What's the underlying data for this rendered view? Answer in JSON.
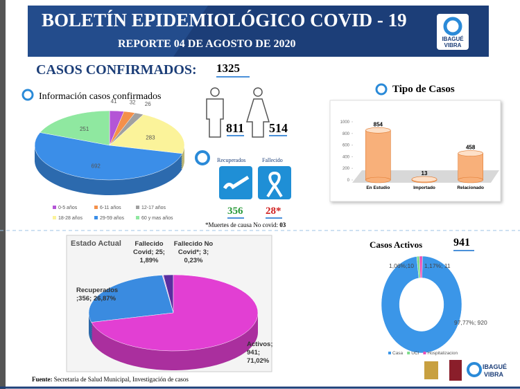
{
  "header": {
    "title": "BOLETÍN EPIDEMIOLÓGICO COVID - 19",
    "subtitle": "REPORTE 04 DE AGOSTO DE 2020",
    "logo_top": "IBAGUÉ",
    "logo_bottom": "VIBRA"
  },
  "confirmed": {
    "label": "CASOS CONFIRMADOS:",
    "total": 1325
  },
  "gender": {
    "male": 811,
    "female": 514
  },
  "status": {
    "recovered_label": "Recuperados",
    "deceased_label": "Fallecido",
    "recovered": 356,
    "deceased": 28,
    "deceased_label_value": "28*",
    "note": "*Muertes de causa No covid:",
    "note_value": "03"
  },
  "source": {
    "label": "Fuente:",
    "text": "Secretaria de Salud Municipal, Investigación de casos"
  },
  "chart_data": [
    {
      "type": "pie",
      "title": "Información casos confirmados",
      "categories": [
        "0-5 años",
        "6-11 años",
        "12-17 años",
        "18-28 años",
        "29-59 años",
        "60 y mas años"
      ],
      "values": [
        41,
        32,
        26,
        283,
        692,
        251
      ],
      "colors": [
        "#b455d6",
        "#f4904a",
        "#a0a0a0",
        "#fbf39a",
        "#3b8ee8",
        "#8fe8a0"
      ]
    },
    {
      "type": "bar",
      "title": "Tipo de Casos",
      "categories": [
        "En Estudio",
        "Importado",
        "Relacionado"
      ],
      "values": [
        854,
        13,
        458
      ],
      "color": "#f8b07a",
      "ylim": [
        0,
        1000
      ],
      "yticks": [
        0,
        200,
        400,
        600,
        800,
        1000
      ]
    },
    {
      "type": "pie",
      "title": "Estado Actual",
      "values": [
        25,
        3,
        356,
        941
      ],
      "value_labels": [
        "Fallecido Covid; 25; 1,89%",
        "Fallecido No Covid*; 3; 0,23%",
        "Recuperados ;356; 26,87%",
        "Activos; 941; 71,02%"
      ],
      "colors": [
        "#5a2ea0",
        "#e3b0e0",
        "#3a8be0",
        "#e23fd3"
      ]
    },
    {
      "type": "donut",
      "title": "Casos Activos",
      "total": 941,
      "categories": [
        "Casa",
        "UCI",
        "Hospitalizacion"
      ],
      "values": [
        920,
        10,
        11
      ],
      "value_labels": [
        "97,77%; 920",
        "1,06%;10",
        "1,17%; 11"
      ],
      "colors": [
        "#3b96e8",
        "#7ddc8a",
        "#e84fb5"
      ]
    }
  ]
}
